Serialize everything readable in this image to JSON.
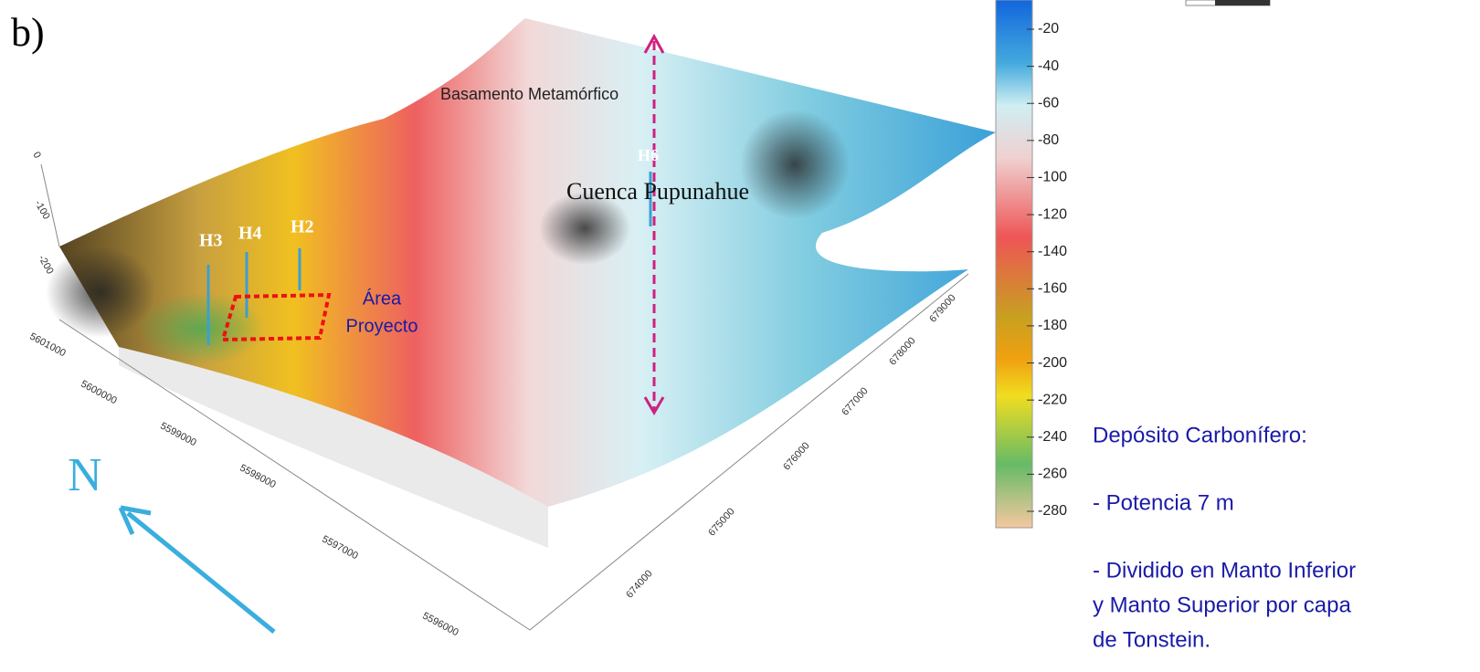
{
  "panel_label": "b)",
  "annotations": {
    "basement": "Basamento Metamórfico",
    "basin": "Cuenca Pupunahue",
    "wells": [
      "H3",
      "H4",
      "H2",
      "H6"
    ],
    "project_area": [
      "Área",
      "Proyecto"
    ]
  },
  "north": "N",
  "colorbar": {
    "ticks": [
      -20,
      -40,
      -60,
      -80,
      -100,
      -120,
      -140,
      -160,
      -180,
      -200,
      -220,
      -240,
      -260,
      -280
    ]
  },
  "northing_ticks": [
    5601000,
    5600000,
    5599000,
    5598000,
    5597000,
    5596000
  ],
  "easting_ticks": [
    674000,
    675000,
    676000,
    677000,
    678000,
    679000
  ],
  "depth_ticks": [
    0,
    -100,
    -200
  ],
  "notes": [
    "Depósito Carbonífero:",
    "- Potencia 7 m",
    "- Dividido en Manto Inferior",
    "y Manto Superior por capa",
    "de Tonstein."
  ]
}
